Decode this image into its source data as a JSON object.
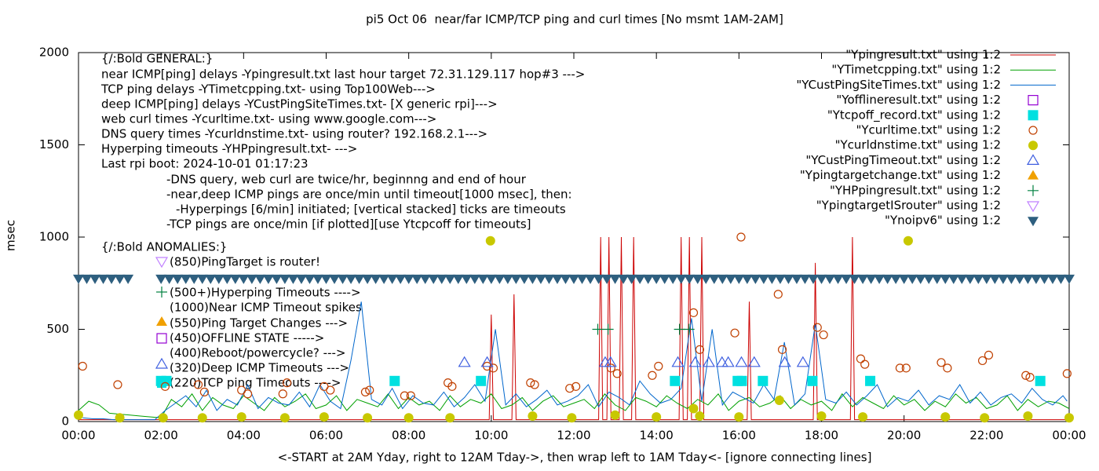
{
  "chart_data": {
    "type": "line",
    "title": "pi5 Oct 06  near/far ICMP/TCP ping and curl times [No msmt 1AM-2AM]",
    "xlabel": "<-START at 2AM Yday, right to 12AM Tday->, then wrap left to 1AM Tday<- [ignore connecting lines]",
    "ylabel": "msec",
    "xlim": [
      0,
      24
    ],
    "xticks": [
      {
        "value": 0,
        "label": "00:00"
      },
      {
        "value": 2,
        "label": "02:00"
      },
      {
        "value": 4,
        "label": "04:00"
      },
      {
        "value": 6,
        "label": "06:00"
      },
      {
        "value": 8,
        "label": "08:00"
      },
      {
        "value": 10,
        "label": "10:00"
      },
      {
        "value": 12,
        "label": "12:00"
      },
      {
        "value": 14,
        "label": "14:00"
      },
      {
        "value": 16,
        "label": "16:00"
      },
      {
        "value": 18,
        "label": "18:00"
      },
      {
        "value": 20,
        "label": "20:00"
      },
      {
        "value": 22,
        "label": "22:00"
      },
      {
        "value": 24,
        "label": "00:00"
      }
    ],
    "ylim": [
      0,
      2000
    ],
    "yticks": [
      0,
      500,
      1000,
      1500,
      2000
    ],
    "legend": "upper right",
    "annotations": [
      "{/:Bold GENERAL:}",
      "near ICMP[ping] delays -Ypingresult.txt last hour target 72.31.129.117 hop#3 --->",
      "TCP ping delays -YTimetcpping.txt- using Top100Web--->",
      "deep ICMP[ping] delays -YCustPingSiteTimes.txt- [X generic rpi]--->",
      "web curl times -Ycurltime.txt- using www.google.com--->",
      "DNS query times -Ycurldnstime.txt- using router? 192.168.2.1--->",
      "Hyperping timeouts -YHPpingresult.txt- --->",
      "Last rpi boot: 2024-10-01 01:17:23",
      "-DNS query, web curl are twice/hr, beginnng and end of hour",
      "-near,deep ICMP pings are once/min until timeout[1000 msec], then:",
      "-Hyperpings [6/min] initiated; [vertical stacked] ticks are timeouts",
      "-TCP pings are once/min [if plotted][use Ytcpcoff for timeouts]",
      "{/:Bold ANOMALIES:}",
      "(850)PingTarget is router!",
      "(500+)Hyperping Timeouts ---->",
      "(1000)Near ICMP Timeout spikes",
      "(550)Ping Target Changes --->",
      "(450)OFFLINE STATE ----->",
      "(400)Reboot/powercycle? --->",
      "(320)Deep ICMP Timeouts --->",
      "(220)TCP ping Timeouts ---->"
    ],
    "series": [
      {
        "name": "\"Ypingresult.txt\" using 1:2",
        "color": "#cc0000",
        "marker": "line",
        "x": [
          0,
          9.95,
          10.0,
          10.05,
          10.5,
          10.55,
          10.6,
          12.6,
          12.65,
          12.7,
          12.8,
          12.85,
          12.9,
          13.1,
          13.15,
          13.2,
          13.4,
          13.45,
          13.5,
          14.55,
          14.6,
          14.65,
          14.75,
          14.8,
          14.85,
          15.05,
          15.1,
          15.15,
          16.2,
          16.25,
          16.3,
          17.8,
          17.85,
          17.9,
          18.7,
          18.75,
          18.8,
          24
        ],
        "values": [
          10,
          10,
          580,
          10,
          10,
          690,
          10,
          10,
          1000,
          10,
          10,
          1000,
          10,
          10,
          1000,
          10,
          10,
          1000,
          10,
          10,
          1000,
          10,
          10,
          1000,
          10,
          10,
          1000,
          10,
          10,
          650,
          10,
          10,
          860,
          10,
          10,
          1000,
          10,
          10
        ]
      },
      {
        "name": "\"YTimetcpping.txt\" using 1:2",
        "color": "#00a000",
        "marker": "line",
        "x": [
          0,
          0.25,
          0.5,
          0.75,
          1,
          1.25,
          1.5,
          1.75,
          2,
          2.25,
          2.5,
          2.75,
          3,
          3.25,
          3.5,
          3.75,
          4,
          4.25,
          4.5,
          4.75,
          5,
          5.25,
          5.5,
          5.75,
          6,
          6.25,
          6.5,
          6.75,
          7,
          7.25,
          7.5,
          7.75,
          8,
          8.25,
          8.5,
          8.75,
          9,
          9.25,
          9.5,
          9.75,
          10,
          10.25,
          10.5,
          10.75,
          11,
          11.25,
          11.5,
          11.75,
          12,
          12.25,
          12.5,
          12.75,
          13,
          13.25,
          13.5,
          13.75,
          14,
          14.25,
          14.5,
          14.75,
          15,
          15.25,
          15.5,
          15.75,
          16,
          16.25,
          16.5,
          16.75,
          17,
          17.25,
          17.5,
          17.75,
          18,
          18.25,
          18.5,
          18.75,
          19,
          19.25,
          19.5,
          19.75,
          20,
          20.25,
          20.5,
          20.75,
          21,
          21.25,
          21.5,
          21.75,
          22,
          22.25,
          22.5,
          22.75,
          23,
          23.25,
          23.5,
          23.75,
          24
        ],
        "values": [
          60,
          110,
          90,
          45,
          40,
          35,
          30,
          25,
          20,
          120,
          80,
          150,
          60,
          130,
          90,
          70,
          140,
          100,
          60,
          130,
          80,
          110,
          150,
          70,
          90,
          140,
          60,
          120,
          100,
          80,
          150,
          70,
          130,
          90,
          110,
          60,
          140,
          80,
          120,
          100,
          150,
          70,
          90,
          130,
          60,
          110,
          140,
          80,
          100,
          120,
          70,
          150,
          90,
          60,
          130,
          110,
          80,
          140,
          100,
          70,
          120,
          90,
          150,
          60,
          110,
          130,
          80,
          100,
          140,
          70,
          120,
          90,
          110,
          60,
          150,
          80,
          130,
          100,
          70,
          140,
          90,
          120,
          60,
          110,
          80,
          150,
          100,
          130,
          70,
          90,
          140,
          60,
          120,
          80,
          110,
          100,
          70
        ]
      },
      {
        "name": "\"YCustPingSiteTimes.txt\" using 1:2",
        "color": "#0066cc",
        "marker": "line",
        "x": [
          0.1,
          0.35,
          0.6,
          0.85,
          1.1,
          1.35,
          1.6,
          1.85,
          2.1,
          2.35,
          2.6,
          2.85,
          3.1,
          3.35,
          3.6,
          3.85,
          4.1,
          4.35,
          4.6,
          4.85,
          5.1,
          5.35,
          5.6,
          5.85,
          6.1,
          6.35,
          6.6,
          6.85,
          7.1,
          7.35,
          7.6,
          7.85,
          8.1,
          8.35,
          8.6,
          8.85,
          9.1,
          9.35,
          9.6,
          9.85,
          10.1,
          10.35,
          10.6,
          10.85,
          11.1,
          11.35,
          11.6,
          11.85,
          12.1,
          12.35,
          12.6,
          12.85,
          13.1,
          13.35,
          13.6,
          13.85,
          14.1,
          14.35,
          14.6,
          14.85,
          15.1,
          15.35,
          15.6,
          15.85,
          16.1,
          16.35,
          16.6,
          16.85,
          17.1,
          17.35,
          17.6,
          17.85,
          18.1,
          18.35,
          18.6,
          18.85,
          19.1,
          19.35,
          19.6,
          19.85,
          20.1,
          20.35,
          20.6,
          20.85,
          21.1,
          21.35,
          21.6,
          21.85,
          22.1,
          22.35,
          22.6,
          22.85,
          23.1,
          23.35,
          23.6,
          23.85,
          23.95
        ],
        "values": [
          20,
          15,
          15,
          10,
          10,
          10,
          10,
          10,
          60,
          100,
          140,
          80,
          170,
          60,
          120,
          90,
          200,
          70,
          130,
          100,
          90,
          160,
          80,
          200,
          110,
          70,
          330,
          650,
          120,
          90,
          180,
          70,
          140,
          100,
          90,
          160,
          80,
          130,
          200,
          110,
          500,
          90,
          150,
          80,
          120,
          170,
          90,
          110,
          140,
          200,
          80,
          160,
          130,
          90,
          220,
          150,
          100,
          120,
          180,
          560,
          110,
          500,
          90,
          160,
          130,
          100,
          200,
          120,
          430,
          90,
          150,
          530,
          120,
          100,
          160,
          90,
          140,
          200,
          80,
          130,
          110,
          170,
          90,
          140,
          120,
          200,
          100,
          160,
          90,
          130,
          150,
          100,
          180,
          120,
          90,
          140,
          110
        ]
      },
      {
        "name": "\"Yofflineresult.txt\" using 1:2",
        "color": "#9400d3",
        "marker": "square-open",
        "x": [],
        "values": []
      },
      {
        "name": "\"Ytcpoff_record.txt\" using 1:2",
        "color": "#00e0e0",
        "marker": "square",
        "x": [
          2.0,
          2.13,
          7.66,
          9.75,
          14.45,
          15.97,
          16.07,
          16.58,
          17.78,
          19.18,
          23.3
        ],
        "values": [
          220,
          220,
          220,
          220,
          220,
          220,
          220,
          220,
          220,
          220,
          220
        ]
      },
      {
        "name": "\"Ycurltime.txt\" using 1:2",
        "color": "#c04000",
        "marker": "circle-open",
        "x": [
          0.1,
          0.95,
          2.1,
          2.9,
          3.05,
          3.95,
          4.1,
          4.95,
          5.05,
          5.95,
          6.1,
          6.95,
          7.05,
          7.9,
          8.05,
          8.95,
          9.05,
          9.9,
          10.05,
          10.95,
          11.05,
          11.9,
          12.05,
          12.9,
          13.05,
          13.9,
          14.05,
          14.9,
          15.05,
          15.9,
          16.05,
          16.95,
          17.05,
          17.9,
          18.05,
          18.95,
          19.05,
          19.9,
          20.05,
          20.9,
          21.05,
          21.9,
          22.05,
          22.95,
          23.05,
          23.95
        ],
        "values": [
          300,
          200,
          190,
          200,
          160,
          170,
          150,
          150,
          210,
          190,
          170,
          160,
          170,
          140,
          140,
          210,
          190,
          300,
          290,
          210,
          200,
          180,
          190,
          290,
          260,
          250,
          300,
          590,
          390,
          480,
          1000,
          690,
          390,
          510,
          470,
          340,
          310,
          290,
          290,
          320,
          290,
          330,
          360,
          250,
          240,
          260
        ]
      },
      {
        "name": "\"Ycurldnstime.txt\" using 1:2",
        "color": "#c8c800",
        "marker": "circle",
        "x": [
          0,
          1,
          2.05,
          3,
          3.95,
          5,
          5.95,
          7,
          8,
          9,
          9.98,
          11,
          11.95,
          13,
          14,
          14.9,
          15.05,
          16,
          16.98,
          18,
          19,
          20.1,
          21,
          21.95,
          23,
          24
        ],
        "values": [
          35,
          20,
          20,
          20,
          25,
          20,
          25,
          20,
          20,
          20,
          980,
          30,
          20,
          35,
          25,
          70,
          30,
          25,
          115,
          30,
          25,
          980,
          25,
          20,
          30,
          20
        ]
      },
      {
        "name": "\"YCustPingTimeout.txt\" using 1:2",
        "color": "#4060e0",
        "marker": "triangle-up-open",
        "x": [
          9.35,
          9.9,
          12.76,
          12.89,
          14.52,
          14.94,
          15.27,
          15.59,
          15.74,
          16.06,
          16.37,
          17.11,
          17.55
        ],
        "values": [
          320,
          320,
          320,
          320,
          320,
          320,
          320,
          320,
          320,
          320,
          320,
          320,
          320
        ]
      },
      {
        "name": "\"Ypingtargetchange.txt\" using 1:2",
        "color": "#f0a000",
        "marker": "triangle-up",
        "x": [],
        "values": []
      },
      {
        "name": "\"YHPpingresult.txt\" using 1:2",
        "color": "#008040",
        "marker": "plus",
        "x": [
          12.58,
          12.83,
          14.56,
          14.79
        ],
        "values": [
          500,
          500,
          500,
          500
        ]
      },
      {
        "name": "\"YpingtargetISrouter\" using 1:2",
        "color": "#c080ff",
        "marker": "triangle-down-open",
        "x": [],
        "values": []
      },
      {
        "name": "\"Ynoipv6\" using 1:2",
        "color": "#2e5f7f",
        "marker": "triangle-down",
        "x": [
          0,
          0.2,
          0.4,
          0.6,
          0.8,
          1,
          1.2,
          2,
          2.2,
          2.4,
          2.6,
          2.8,
          3,
          3.2,
          3.4,
          3.6,
          3.8,
          4,
          4.2,
          4.4,
          4.6,
          4.8,
          5,
          5.2,
          5.4,
          5.6,
          5.8,
          6,
          6.2,
          6.4,
          6.6,
          6.8,
          7,
          7.2,
          7.4,
          7.6,
          7.8,
          8,
          8.2,
          8.4,
          8.6,
          8.8,
          9,
          9.2,
          9.4,
          9.6,
          9.8,
          10,
          10.2,
          10.4,
          10.6,
          10.8,
          11,
          11.2,
          11.4,
          11.6,
          11.8,
          12,
          12.2,
          12.4,
          12.6,
          12.8,
          13,
          13.2,
          13.4,
          13.6,
          13.8,
          14,
          14.2,
          14.4,
          14.6,
          14.8,
          15,
          15.2,
          15.4,
          15.6,
          15.8,
          16,
          16.2,
          16.4,
          16.6,
          16.8,
          17,
          17.2,
          17.4,
          17.6,
          17.8,
          18,
          18.2,
          18.4,
          18.6,
          18.8,
          19,
          19.2,
          19.4,
          19.6,
          19.8,
          20,
          20.2,
          20.4,
          20.6,
          20.8,
          21,
          21.2,
          21.4,
          21.6,
          21.8,
          22,
          22.2,
          22.4,
          22.6,
          22.8,
          23,
          23.2,
          23.4,
          23.6,
          23.8,
          24
        ],
        "values": [
          775,
          775,
          775,
          775,
          775,
          775,
          775,
          775,
          775,
          775,
          775,
          775,
          775,
          775,
          775,
          775,
          775,
          775,
          775,
          775,
          775,
          775,
          775,
          775,
          775,
          775,
          775,
          775,
          775,
          775,
          775,
          775,
          775,
          775,
          775,
          775,
          775,
          775,
          775,
          775,
          775,
          775,
          775,
          775,
          775,
          775,
          775,
          775,
          775,
          775,
          775,
          775,
          775,
          775,
          775,
          775,
          775,
          775,
          775,
          775,
          775,
          775,
          775,
          775,
          775,
          775,
          775,
          775,
          775,
          775,
          775,
          775,
          775,
          775,
          775,
          775,
          775,
          775,
          775,
          775,
          775,
          775,
          775,
          775,
          775,
          775,
          775,
          775,
          775,
          775,
          775,
          775,
          775,
          775,
          775,
          775,
          775,
          775,
          775,
          775,
          775,
          775,
          775,
          775,
          775,
          775,
          775,
          775,
          775,
          775,
          775,
          775,
          775,
          775,
          775,
          775,
          775,
          775
        ]
      }
    ]
  }
}
